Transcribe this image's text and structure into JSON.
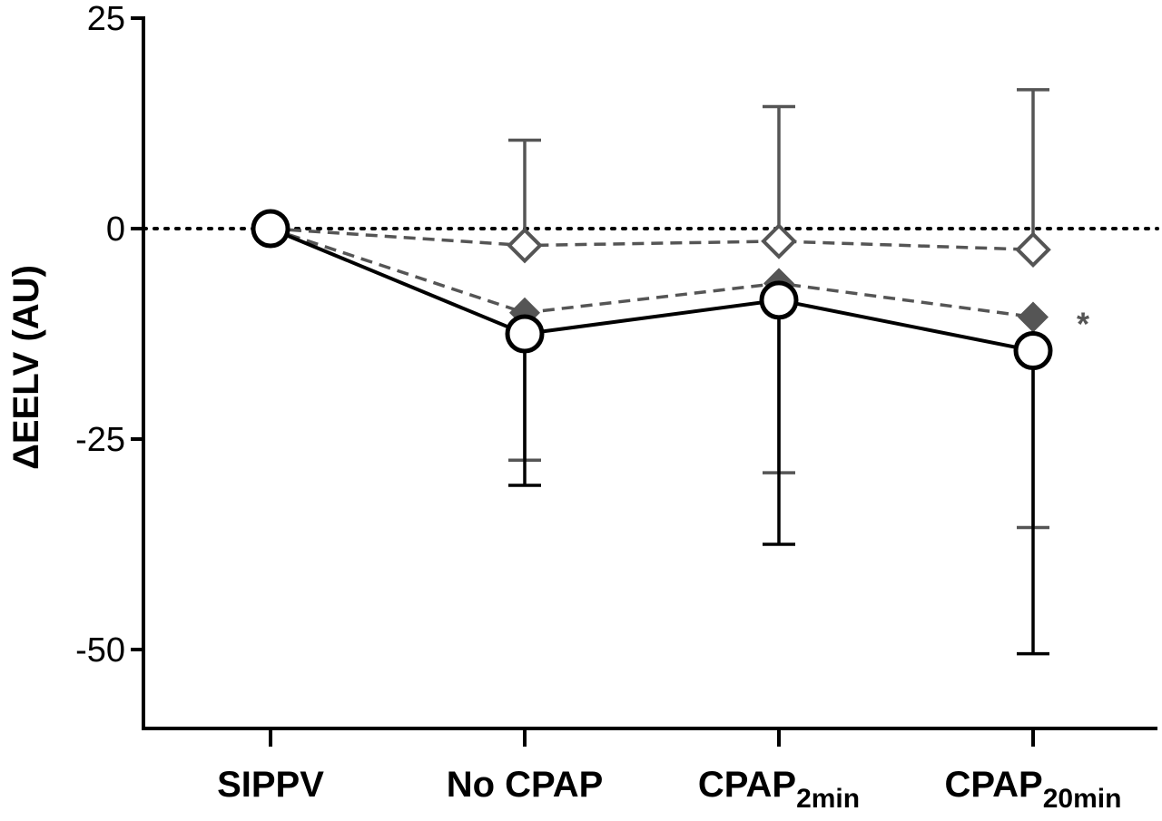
{
  "chart_data": {
    "type": "line",
    "title": "",
    "xlabel": "",
    "ylabel": "ΔEELV (AU)",
    "ylim": [
      -59,
      25
    ],
    "yticks": [
      25,
      0,
      -25,
      -50
    ],
    "ytick_labels": [
      "25",
      "0",
      "-25",
      "-50"
    ],
    "categories": [
      {
        "main": "SIPPV",
        "sub": ""
      },
      {
        "main": "No CPAP",
        "sub": ""
      },
      {
        "main": "CPAP",
        "sub": "2min"
      },
      {
        "main": "CPAP",
        "sub": "20min"
      }
    ],
    "reference_line": {
      "y": 0,
      "style": "dotted"
    },
    "grid": false,
    "legend": "none",
    "series": [
      {
        "marker": "open-circle",
        "line": "solid",
        "color": "#000000",
        "values": [
          0,
          -12.5,
          -8.5,
          -14.5
        ],
        "error_low": [
          0,
          -30.5,
          -37.5,
          -50.5
        ],
        "error_high": [
          0,
          -12.5,
          -8.5,
          -14.5
        ]
      },
      {
        "marker": "filled-diamond",
        "line": "dashed",
        "color": "#555555",
        "values": [
          0,
          -10,
          -6.5,
          -10.5
        ],
        "error_low": [
          0,
          -27.5,
          -29,
          -35.5
        ],
        "error_high": [
          0,
          -10,
          -6.5,
          -10.5
        ]
      },
      {
        "marker": "open-diamond",
        "line": "dashed",
        "color": "#555555",
        "values": [
          0,
          -2,
          -1.5,
          -2.5
        ],
        "error_low": [
          0,
          -2,
          -1.5,
          -2.5
        ],
        "error_high": [
          0,
          10.5,
          14.5,
          16.5
        ]
      }
    ],
    "annotations": [
      {
        "text": "*",
        "category_index": 3
      }
    ]
  }
}
